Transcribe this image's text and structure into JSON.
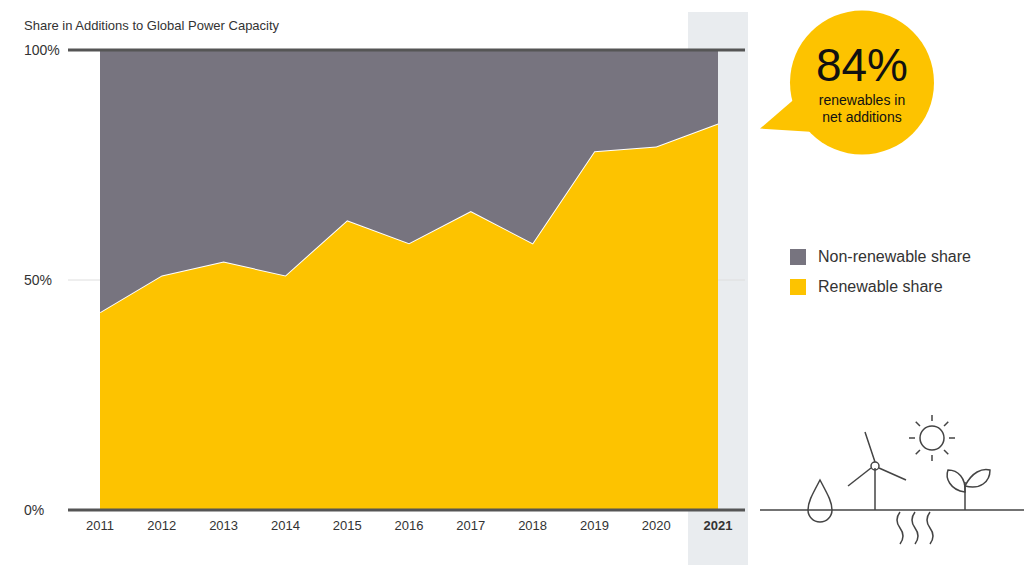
{
  "chart_data": {
    "type": "area",
    "stacked": true,
    "title": "Share in Additions to Global Power Capacity",
    "categories": [
      "2011",
      "2012",
      "2013",
      "2014",
      "2015",
      "2016",
      "2017",
      "2018",
      "2019",
      "2020",
      "2021"
    ],
    "series": [
      {
        "name": "Non-renewable share",
        "color": "#77747f",
        "values": [
          57,
          49,
          46,
          49,
          37,
          42,
          35,
          42,
          22,
          21,
          16
        ]
      },
      {
        "name": "Renewable share",
        "color": "#fdc300",
        "values": [
          43,
          51,
          54,
          51,
          63,
          58,
          65,
          58,
          78,
          79,
          84
        ]
      }
    ],
    "ylim": [
      0,
      100
    ],
    "yticks": [
      {
        "value": 0,
        "label": "0%"
      },
      {
        "value": 50,
        "label": "50%"
      },
      {
        "value": 100,
        "label": "100%"
      }
    ],
    "grid": true,
    "legend": "right",
    "annotations": [
      {
        "x": "2021",
        "value": 84,
        "label": "84%",
        "text": "renewables in net additions"
      }
    ]
  }
}
